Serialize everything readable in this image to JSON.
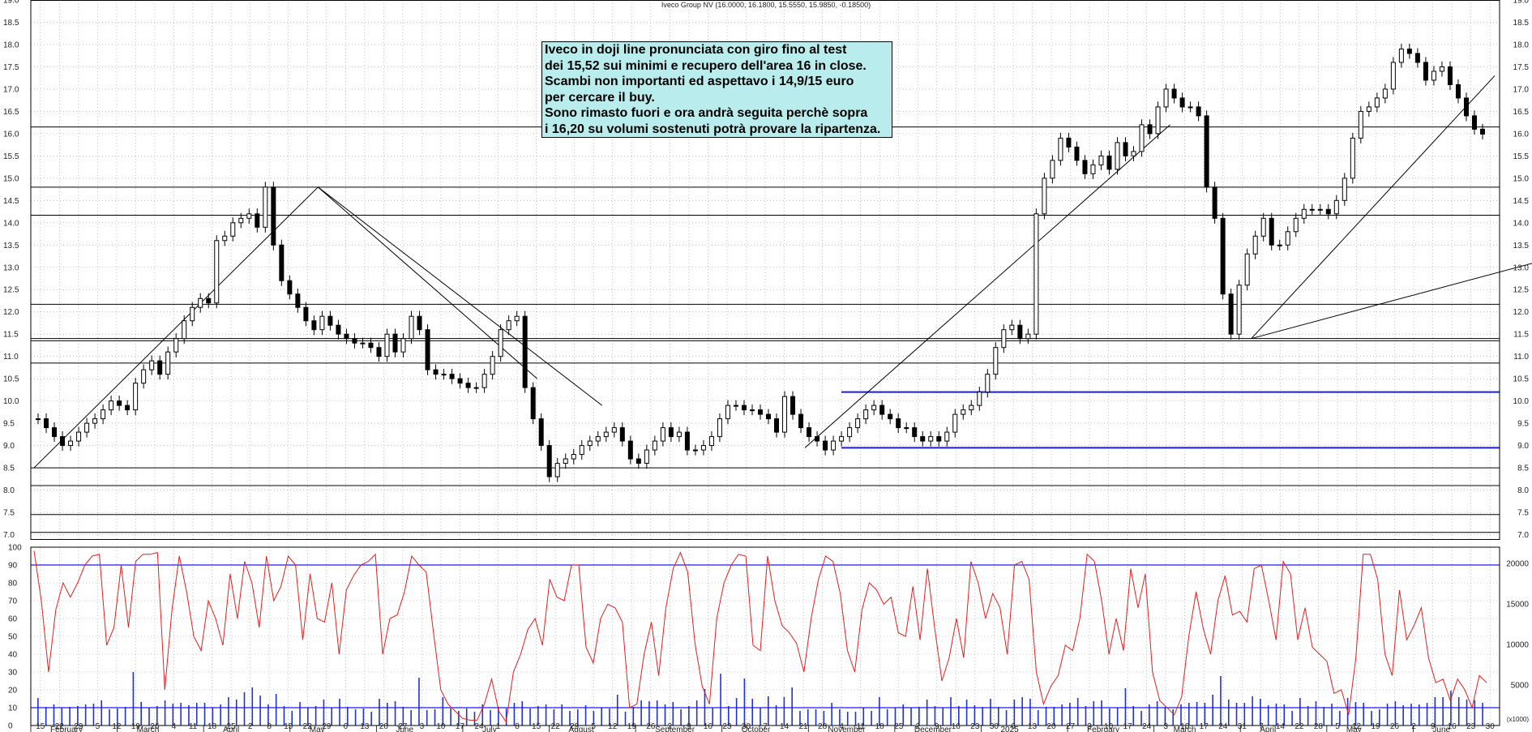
{
  "header": {
    "title": "Iveco Group NV (16.0000, 16.1800, 15.5550, 15.9850, -0.18500)"
  },
  "note": {
    "lines": [
      "Iveco in doji line pronunciata con giro fino al test",
      "dei 15,52 sui minimi e recupero dell'area 16 in close.",
      "Scambi non importanti ed aspettavo i 14,9/15 euro",
      "per cercare il buy.",
      "Sono rimasto fuori e ora andrà seguita perchè sopra",
      "i 16,20 su volumi sostenuti potrà provare la ripartenza."
    ]
  },
  "colors": {
    "grid": "#9a9a9a",
    "candle": "#000000",
    "oscillator": "#e02020",
    "volume": "#2233cc",
    "blue_level": "#1a1aee",
    "note_bg": "#b9ecec"
  },
  "chart_data": [
    {
      "type": "candlestick",
      "title": "Iveco Group NV (16.0000, 16.1800, 15.5550, 15.9850, -0.18500)",
      "ylim": [
        6.9,
        19.0
      ],
      "y_ticks": [
        "19.0",
        "18.5",
        "18.0",
        "17.5",
        "17.0",
        "16.5",
        "16.0",
        "15.5",
        "15.0",
        "14.5",
        "14.0",
        "13.5",
        "13.0",
        "12.5",
        "12.0",
        "11.5",
        "11.0",
        "10.5",
        "10.0",
        "9.5",
        "9.0",
        "8.5",
        "8.0",
        "7.5",
        "7.0"
      ],
      "grid": true,
      "close_series": [
        9.6,
        9.4,
        9.2,
        9.0,
        9.1,
        9.3,
        9.5,
        9.6,
        9.8,
        10.0,
        9.9,
        9.8,
        10.4,
        10.7,
        10.9,
        10.6,
        11.1,
        11.4,
        11.8,
        12.1,
        12.3,
        12.2,
        13.6,
        13.7,
        14.0,
        14.1,
        14.2,
        13.9,
        14.8,
        13.5,
        12.7,
        12.4,
        12.1,
        11.8,
        11.6,
        11.9,
        11.7,
        11.5,
        11.4,
        11.3,
        11.3,
        11.2,
        11.0,
        11.5,
        11.1,
        11.4,
        11.9,
        11.6,
        10.7,
        10.6,
        10.6,
        10.5,
        10.4,
        10.3,
        10.3,
        10.6,
        11.0,
        11.6,
        11.8,
        11.9,
        10.3,
        9.6,
        9.0,
        8.3,
        8.6,
        8.7,
        8.8,
        9.0,
        9.1,
        9.2,
        9.3,
        9.4,
        9.1,
        8.7,
        8.6,
        8.9,
        9.1,
        9.4,
        9.2,
        9.3,
        8.9,
        8.9,
        9.0,
        9.2,
        9.6,
        9.9,
        9.9,
        9.8,
        9.8,
        9.7,
        9.6,
        9.3,
        10.1,
        9.7,
        9.4,
        9.2,
        9.1,
        8.9,
        9.1,
        9.2,
        9.4,
        9.6,
        9.8,
        9.9,
        9.7,
        9.6,
        9.4,
        9.4,
        9.2,
        9.1,
        9.2,
        9.1,
        9.3,
        9.7,
        9.8,
        9.9,
        10.2,
        10.6,
        11.2,
        11.6,
        11.7,
        11.4,
        11.5,
        14.2,
        15.0,
        15.4,
        15.9,
        15.7,
        15.4,
        15.1,
        15.3,
        15.5,
        15.2,
        15.8,
        15.5,
        15.6,
        16.2,
        16.0,
        16.6,
        17.0,
        16.8,
        16.6,
        16.6,
        16.4,
        14.8,
        14.1,
        12.4,
        11.5,
        12.6,
        13.3,
        13.7,
        14.1,
        13.5,
        13.5,
        13.8,
        14.1,
        14.3,
        14.3,
        14.3,
        14.2,
        14.5,
        15.0,
        15.9,
        16.5,
        16.6,
        16.8,
        17.0,
        17.6,
        17.9,
        17.8,
        17.6,
        17.2,
        17.4,
        17.5,
        17.1,
        16.8,
        16.4,
        16.1,
        15.99
      ],
      "highlighted_levels": [
        10.2,
        8.95
      ],
      "horizontal_levels": [
        14.8,
        14.17,
        12.17,
        11.35,
        10.85,
        8.5,
        8.1,
        7.45,
        7.05,
        16.15,
        11.4
      ],
      "x_tick_labels": [
        "15",
        "22",
        "29",
        "5",
        "12",
        "19",
        "26",
        "4",
        "11",
        "18",
        "25",
        "2",
        "8",
        "15",
        "22",
        "29",
        "6",
        "13",
        "20",
        "27",
        "3",
        "10",
        "17",
        "24",
        "1",
        "8",
        "15",
        "22",
        "29",
        "5",
        "12",
        "19",
        "26",
        "2",
        "9",
        "16",
        "23",
        "30",
        "7",
        "14",
        "21",
        "28",
        "4",
        "11",
        "18",
        "25",
        "2",
        "9",
        "16",
        "23",
        "30",
        "6",
        "13",
        "20",
        "27",
        "3",
        "10",
        "17",
        "24",
        "3",
        "10",
        "17",
        "24",
        "31",
        "7",
        "14",
        "22",
        "28",
        "5",
        "12",
        "19",
        "26",
        "2",
        "9",
        "16",
        "23",
        "30"
      ],
      "x_month_labels": [
        "February",
        "March",
        "April",
        "May",
        "June",
        "July",
        "August",
        "September",
        "October",
        "November",
        "December",
        "2025",
        "February",
        "March",
        "April",
        "May",
        "June"
      ]
    },
    {
      "type": "line+bar",
      "ylim_left": [
        0,
        100
      ],
      "y_ticks_left": [
        "100",
        "90",
        "80",
        "70",
        "60",
        "50",
        "40",
        "30",
        "20",
        "10",
        "0"
      ],
      "y_ticks_right": [
        "20000",
        "15000",
        "10000",
        "5000"
      ],
      "right_unit": "(x1000)",
      "oscillator_levels": [
        90,
        10
      ],
      "series": [
        {
          "values": [
            98,
            70,
            30,
            65,
            80,
            72,
            80,
            90,
            95,
            96,
            45,
            55,
            90,
            55,
            92,
            96,
            96,
            97,
            20,
            65,
            95,
            75,
            50,
            42,
            70,
            60,
            45,
            85,
            60,
            92,
            80,
            55,
            95,
            70,
            78,
            95,
            90,
            48,
            85,
            60,
            58,
            80,
            40,
            76,
            84,
            90,
            92,
            96,
            40,
            60,
            62,
            75,
            95,
            90,
            86,
            52,
            20,
            12,
            8,
            4,
            3,
            3,
            12,
            26,
            8,
            2,
            30,
            40,
            54,
            60,
            45,
            82,
            72,
            70,
            90,
            90,
            44,
            35,
            60,
            68,
            66,
            58,
            10,
            12,
            40,
            58,
            28,
            66,
            88,
            97,
            86,
            46,
            22,
            12,
            60,
            80,
            90,
            96,
            95,
            45,
            42,
            95,
            70,
            56,
            52,
            46,
            30,
            60,
            82,
            95,
            92,
            74,
            42,
            30,
            65,
            80,
            76,
            68,
            72,
            52,
            50,
            78,
            48,
            88,
            55,
            25,
            38,
            60,
            38,
            92,
            80,
            60,
            74,
            66,
            40,
            90,
            92,
            82,
            30,
            12,
            22,
            28,
            45,
            42,
            60,
            96,
            92,
            70,
            40,
            60,
            42,
            88,
            66,
            85,
            30,
            14,
            10,
            6,
            16,
            50,
            75,
            54,
            40,
            70,
            84,
            62,
            64,
            58,
            88,
            90,
            70,
            48,
            92,
            85,
            48,
            66,
            44,
            40,
            36,
            18,
            20,
            6,
            38,
            96,
            96,
            82,
            40,
            28,
            76,
            48,
            56,
            66,
            38,
            24,
            26,
            14,
            26,
            20,
            10,
            28,
            24
          ]
        },
        {
          "values": [
            3.4,
            2.3,
            2.6,
            2.2,
            2.3,
            2.4,
            2.6,
            2.7,
            3.1,
            2.0,
            2.1,
            2.3,
            6.6,
            2.9,
            2.2,
            2.4,
            3.1,
            2.7,
            2.8,
            2.5,
            2.8,
            2.8,
            2.2,
            2.6,
            3.5,
            3.2,
            4.1,
            4.7,
            3.7,
            2.6,
            3.9,
            2.4,
            1.8,
            2.9,
            2.2,
            2.4,
            3.2,
            2.2,
            3.3,
            2.3,
            2.0,
            2.1,
            1.7,
            3.3,
            2.8,
            3.0,
            2.3,
            1.9,
            5.9,
            1.9,
            2.0,
            3.5,
            2.1,
            1.8,
            2.1,
            1.7,
            2.6,
            1.9,
            2.3,
            2.1,
            2.8,
            3.0,
            2.1,
            2.4,
            2.6,
            2.0,
            2.6,
            1.8,
            2.0,
            2.5,
            1.8,
            2.2,
            2.1,
            3.8,
            1.7,
            2.3,
            3.1,
            3.0,
            3.1,
            2.6,
            2.9,
            2.0,
            2.4,
            3.1,
            4.5,
            2.2,
            6.4,
            2.4,
            3.4,
            5.8,
            3.3,
            2.2,
            3.6,
            2.5,
            3.5,
            4.7,
            1.8,
            2.0,
            2.0,
            1.8,
            2.8,
            2.0,
            1.7,
            1.7,
            2.2,
            1.8,
            3.5,
            2.0,
            2.2,
            2.6,
            2.2,
            2.3,
            3.2,
            2.4,
            2.2,
            3.5,
            2.4,
            3.2,
            2.5,
            2.3,
            3.3,
            2.3,
            1.9,
            3.2,
            3.5,
            3.3,
            1.9,
            2.3,
            2.3,
            2.6,
            2.8,
            3.4,
            2.4,
            3.0,
            3.1,
            2.1,
            2.2,
            4.6,
            2.4,
            1.8,
            2.6,
            3.0,
            2.3,
            2.0,
            2.6,
            2.8,
            2.9,
            2.8,
            3.8,
            6.1,
            3.2,
            2.8,
            2.8,
            3.6,
            3.3,
            2.5,
            2.7,
            2.6,
            1.8,
            3.4,
            2.4,
            3.0,
            2.3,
            2.7,
            1.8,
            3.4,
            2.9,
            2.8,
            1.8,
            2.0,
            2.7,
            3.0,
            2.5,
            2.7,
            2.6,
            2.8,
            3.5,
            3.5,
            4.3,
            3.5,
            3.2,
            3.1,
            2.8
          ]
        }
      ],
      "y_unit_label": "(x1000)"
    }
  ]
}
